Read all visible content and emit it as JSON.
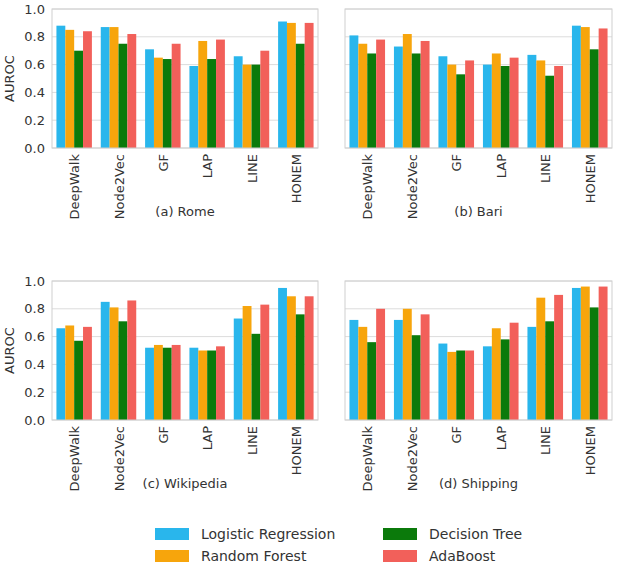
{
  "chart_data": [
    {
      "type": "bar",
      "title": "(a) Rome",
      "y_label": "AUROC",
      "categories": [
        "DeepWalk",
        "Node2Vec",
        "GF",
        "LAP",
        "LINE",
        "HONEM"
      ],
      "ylim": [
        0,
        1.0
      ],
      "yticks": [
        {
          "value": 0,
          "label": "0.0"
        },
        {
          "value": 0.2,
          "label": "0.2"
        },
        {
          "value": 0.4,
          "label": "0.4"
        },
        {
          "value": 0.6,
          "label": "0.6"
        },
        {
          "value": 0.8,
          "label": "0.8"
        },
        {
          "value": 1.0,
          "label": "1.0"
        }
      ],
      "grid": true,
      "legend": "bottom",
      "series": [
        {
          "name": "Logistic Regression",
          "color": "#29b6ec",
          "values": [
            0.88,
            0.87,
            0.71,
            0.59,
            0.66,
            0.91
          ]
        },
        {
          "name": "Random Forest",
          "color": "#f7a50c",
          "values": [
            0.85,
            0.87,
            0.65,
            0.77,
            0.6,
            0.9
          ]
        },
        {
          "name": "Decision Tree",
          "color": "#0b7a0b",
          "values": [
            0.7,
            0.75,
            0.64,
            0.64,
            0.6,
            0.75
          ]
        },
        {
          "name": "AdaBoost",
          "color": "#f2605a",
          "values": [
            0.84,
            0.82,
            0.75,
            0.78,
            0.7,
            0.9
          ]
        }
      ]
    },
    {
      "type": "bar",
      "title": "(b) Bari",
      "categories": [
        "DeepWalk",
        "Node2Vec",
        "GF",
        "LAP",
        "LINE",
        "HONEM"
      ],
      "ylim": [
        0,
        1.0
      ],
      "yticks": [
        0,
        0.2,
        0.4,
        0.6,
        0.8,
        1.0
      ],
      "grid": true,
      "tick_labels": "x",
      "series": [
        {
          "color": "#29b6ec",
          "values": [
            0.81,
            0.73,
            0.66,
            0.6,
            0.67,
            0.88
          ]
        },
        {
          "color": "#f7a50c",
          "values": [
            0.75,
            0.82,
            0.6,
            0.68,
            0.63,
            0.87
          ]
        },
        {
          "color": "#0b7a0b",
          "values": [
            0.68,
            0.68,
            0.53,
            0.59,
            0.52,
            0.71
          ]
        },
        {
          "color": "#f2605a",
          "values": [
            0.78,
            0.77,
            0.63,
            0.65,
            0.59,
            0.86
          ]
        }
      ]
    },
    {
      "type": "bar",
      "title": "(c) Wikipedia",
      "y_label": "AUROC",
      "categories": [
        "DeepWalk",
        "Node2Vec",
        "GF",
        "LAP",
        "LINE",
        "HONEM"
      ],
      "ylim": [
        0,
        1.0
      ],
      "yticks": [
        {
          "value": 0,
          "label": "0.0"
        },
        {
          "value": 0.2,
          "label": "0.2"
        },
        {
          "value": 0.4,
          "label": "0.4"
        },
        {
          "value": 0.6,
          "label": "0.6"
        },
        {
          "value": 0.8,
          "label": "0.8"
        },
        {
          "value": 1.0,
          "label": "1.0"
        }
      ],
      "grid": true,
      "series": [
        {
          "color": "#29b6ec",
          "values": [
            0.66,
            0.85,
            0.52,
            0.52,
            0.73,
            0.95
          ]
        },
        {
          "color": "#f7a50c",
          "values": [
            0.68,
            0.81,
            0.54,
            0.5,
            0.82,
            0.89
          ]
        },
        {
          "color": "#0b7a0b",
          "values": [
            0.57,
            0.71,
            0.52,
            0.5,
            0.62,
            0.76
          ]
        },
        {
          "color": "#f2605a",
          "values": [
            0.67,
            0.86,
            0.54,
            0.53,
            0.83,
            0.89
          ]
        }
      ]
    },
    {
      "type": "bar",
      "title": "(d) Shipping",
      "categories": [
        "DeepWalk",
        "Node2Vec",
        "GF",
        "LAP",
        "LINE",
        "HONEM"
      ],
      "ylim": [
        0,
        1.0
      ],
      "yticks": [
        0,
        0.2,
        0.4,
        0.6,
        0.8,
        1.0
      ],
      "grid": true,
      "tick_labels": "x",
      "series": [
        {
          "color": "#29b6ec",
          "values": [
            0.72,
            0.72,
            0.55,
            0.53,
            0.67,
            0.95
          ]
        },
        {
          "color": "#f7a50c",
          "values": [
            0.67,
            0.8,
            0.49,
            0.66,
            0.88,
            0.96
          ]
        },
        {
          "color": "#0b7a0b",
          "values": [
            0.56,
            0.61,
            0.5,
            0.58,
            0.71,
            0.81
          ]
        },
        {
          "color": "#f2605a",
          "values": [
            0.8,
            0.76,
            0.5,
            0.7,
            0.9,
            0.96
          ]
        }
      ]
    }
  ]
}
